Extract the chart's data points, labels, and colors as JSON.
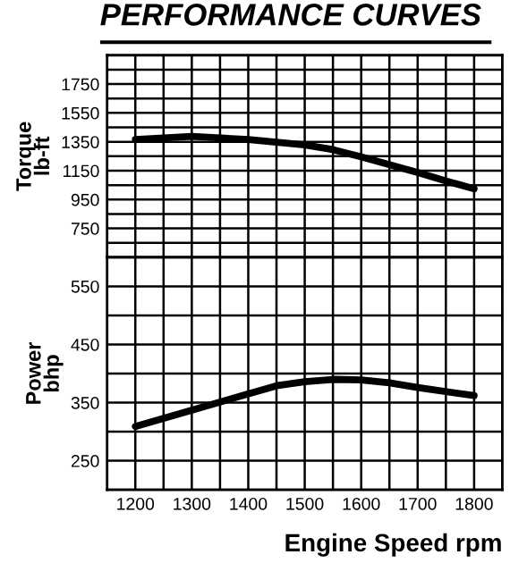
{
  "chart_data": [
    {
      "type": "line",
      "title": "PERFORMANCE CURVES",
      "ylabel": "Torque\nlb-ft",
      "x": [
        1200,
        1300,
        1400,
        1500,
        1550,
        1600,
        1650,
        1700,
        1750,
        1800
      ],
      "series": [
        {
          "color": "#000000",
          "values": [
            1366,
            1387,
            1366,
            1329,
            1296,
            1246,
            1192,
            1137,
            1079,
            1025
          ]
        }
      ],
      "xlim": [
        1150,
        1850
      ],
      "xticks": [
        1200,
        1300,
        1400,
        1500,
        1600,
        1700,
        1800
      ],
      "ylim": [
        550,
        1950
      ],
      "yticks": [
        750,
        950,
        1150,
        1350,
        1550,
        1750
      ],
      "grid": true,
      "tick_labels": "y",
      "marker": "none",
      "line_style": "solid"
    },
    {
      "type": "line",
      "ylabel": "Power\nbhp",
      "xlabel": "Engine Speed rpm",
      "x": [
        1200,
        1300,
        1400,
        1450,
        1500,
        1550,
        1600,
        1650,
        1700,
        1800
      ],
      "series": [
        {
          "color": "#000000",
          "values": [
            309,
            337,
            365,
            379,
            386,
            390,
            389,
            384,
            376,
            362
          ]
        }
      ],
      "xlim": [
        1150,
        1850
      ],
      "xticks": [
        1200,
        1300,
        1400,
        1500,
        1600,
        1700,
        1800
      ],
      "ylim": [
        200,
        600
      ],
      "yticks": [
        250,
        350,
        450,
        550
      ],
      "grid": true,
      "marker": "none",
      "line_style": "solid"
    }
  ]
}
